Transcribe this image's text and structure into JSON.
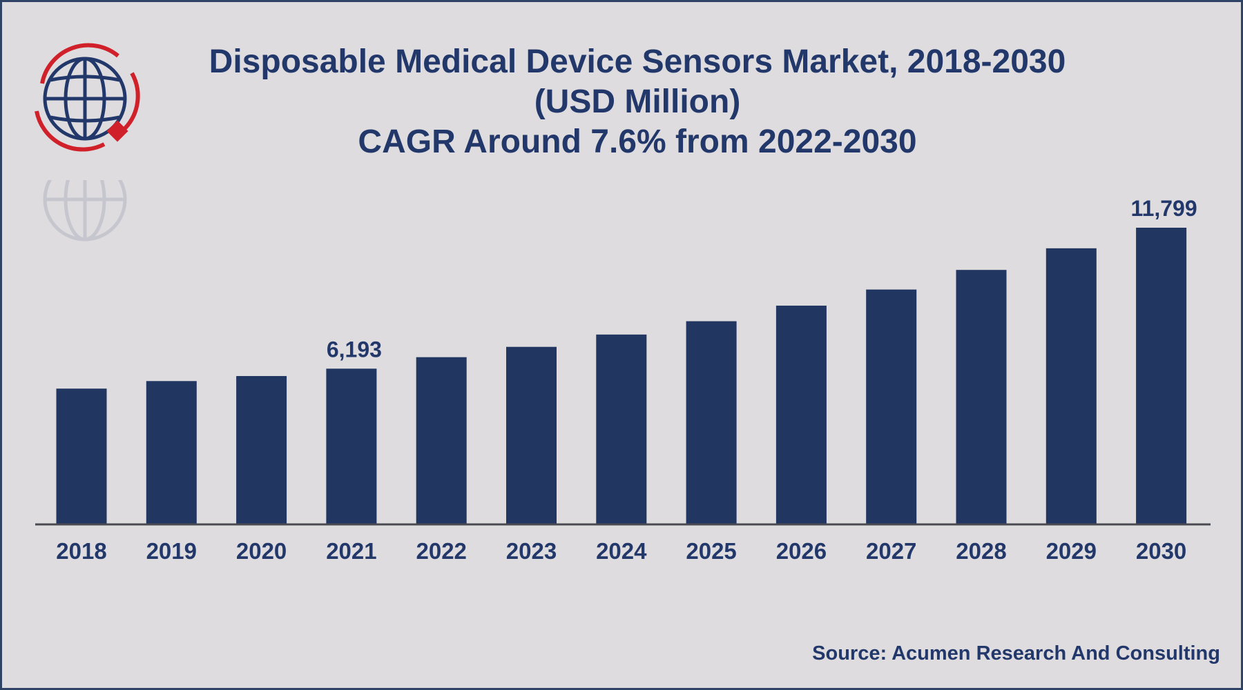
{
  "header": {
    "title_line1": "Disposable Medical Device Sensors Market, 2018-2030",
    "title_line2": "(USD Million)",
    "title_line3": "CAGR Around 7.6% from 2022-2030"
  },
  "footer": {
    "source": "Source: Acumen Research And Consulting"
  },
  "logo": {
    "icon": "globe-with-arrows-icon",
    "globe_color": "#23386a",
    "arrow_color": "#d0202a"
  },
  "colors": {
    "bar": "#213661",
    "axis": "#4a4a52",
    "text": "#23386a",
    "background": "#dedcdf"
  },
  "chart_data": {
    "type": "bar",
    "title": "Disposable Medical Device Sensors Market, 2018-2030 (USD Million) CAGR Around 7.6% from 2022-2030",
    "xlabel": "",
    "ylabel": "",
    "categories": [
      "2018",
      "2019",
      "2020",
      "2021",
      "2022",
      "2023",
      "2024",
      "2025",
      "2026",
      "2027",
      "2028",
      "2029",
      "2030"
    ],
    "values": [
      5400,
      5700,
      5900,
      6193,
      6650,
      7060,
      7550,
      8080,
      8700,
      9340,
      10120,
      10980,
      11799
    ],
    "data_labels": [
      {
        "category": "2021",
        "text": "6,193"
      },
      {
        "category": "2030",
        "text": "11,799"
      }
    ],
    "ylim": [
      0,
      12000
    ],
    "grid": false,
    "legend": "none"
  }
}
